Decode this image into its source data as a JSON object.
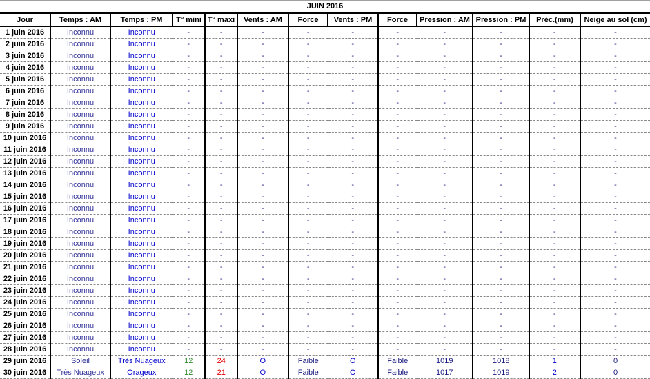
{
  "title": "JUIN  2016",
  "columns": [
    "Jour",
    "Temps : AM",
    "Temps : PM",
    "T° mini",
    "T° maxi",
    "Vents : AM",
    "Force",
    "Vents : PM",
    "Force",
    "Pression : AM",
    "Pression : PM",
    "Préc.(mm)",
    "Neige au sol (cm)"
  ],
  "colors": {
    "temps_am": "#333399",
    "temps_pm": "#0000cc",
    "t_mini": "#2e8b2e",
    "t_maxi": "#e00000",
    "dash": "#1a1a80"
  },
  "rows": [
    [
      "1 juin 2016",
      "Inconnu",
      "Inconnu",
      "-",
      "-",
      "-",
      "-",
      "-",
      "-",
      "-",
      "-",
      "-",
      "-"
    ],
    [
      "2 juin 2016",
      "Inconnu",
      "Inconnu",
      "-",
      "-",
      "-",
      "-",
      "-",
      "-",
      "-",
      "-",
      "-",
      "-"
    ],
    [
      "3 juin 2016",
      "Inconnu",
      "Inconnu",
      "-",
      "-",
      "-",
      "-",
      "-",
      "-",
      "-",
      "-",
      "-",
      "-"
    ],
    [
      "4 juin 2016",
      "Inconnu",
      "Inconnu",
      "-",
      "-",
      "-",
      "-",
      "-",
      "-",
      "-",
      "-",
      "-",
      "-"
    ],
    [
      "5 juin 2016",
      "Inconnu",
      "Inconnu",
      "-",
      "-",
      "-",
      "-",
      "-",
      "-",
      "-",
      "-",
      "-",
      "-"
    ],
    [
      "6 juin 2016",
      "Inconnu",
      "Inconnu",
      "-",
      "-",
      "-",
      "-",
      "-",
      "-",
      "-",
      "-",
      "-",
      "-"
    ],
    [
      "7 juin 2016",
      "Inconnu",
      "Inconnu",
      "-",
      "-",
      "-",
      "-",
      "-",
      "-",
      "-",
      "-",
      "-",
      "-"
    ],
    [
      "8 juin 2016",
      "Inconnu",
      "Inconnu",
      "-",
      "-",
      "-",
      "-",
      "-",
      "-",
      "-",
      "-",
      "-",
      "-"
    ],
    [
      "9 juin 2016",
      "Inconnu",
      "Inconnu",
      "-",
      "-",
      "-",
      "-",
      "-",
      "-",
      "-",
      "-",
      "-",
      "-"
    ],
    [
      "10 juin 2016",
      "Inconnu",
      "Inconnu",
      "-",
      "-",
      "-",
      "-",
      "-",
      "-",
      "-",
      "-",
      "-",
      "-"
    ],
    [
      "11 juin 2016",
      "Inconnu",
      "Inconnu",
      "-",
      "-",
      "-",
      "-",
      "-",
      "-",
      "-",
      "-",
      "-",
      "-"
    ],
    [
      "12 juin 2016",
      "Inconnu",
      "Inconnu",
      "-",
      "-",
      "-",
      "-",
      "-",
      "-",
      "-",
      "-",
      "-",
      "-"
    ],
    [
      "13 juin 2016",
      "Inconnu",
      "Inconnu",
      "-",
      "-",
      "-",
      "-",
      "-",
      "-",
      "-",
      "-",
      "-",
      "-"
    ],
    [
      "14 juin 2016",
      "Inconnu",
      "Inconnu",
      "-",
      "-",
      "-",
      "-",
      "-",
      "-",
      "-",
      "-",
      "-",
      "-"
    ],
    [
      "15 juin 2016",
      "Inconnu",
      "Inconnu",
      "-",
      "-",
      "-",
      "-",
      "-",
      "-",
      "-",
      "-",
      "-",
      "-"
    ],
    [
      "16 juin 2016",
      "Inconnu",
      "Inconnu",
      "-",
      "-",
      "-",
      "-",
      "-",
      "-",
      "-",
      "-",
      "-",
      "-"
    ],
    [
      "17 juin 2016",
      "Inconnu",
      "Inconnu",
      "-",
      "-",
      "-",
      "-",
      "-",
      "-",
      "-",
      "-",
      "-",
      "-"
    ],
    [
      "18 juin 2016",
      "Inconnu",
      "Inconnu",
      "-",
      "-",
      "-",
      "-",
      "-",
      "-",
      "-",
      "-",
      "-",
      "-"
    ],
    [
      "19 juin 2016",
      "Inconnu",
      "Inconnu",
      "-",
      "-",
      "-",
      "-",
      "-",
      "-",
      "-",
      "-",
      "-",
      "-"
    ],
    [
      "20 juin 2016",
      "Inconnu",
      "Inconnu",
      "-",
      "-",
      "-",
      "-",
      "-",
      "-",
      "-",
      "-",
      "-",
      "-"
    ],
    [
      "21 juin 2016",
      "Inconnu",
      "Inconnu",
      "-",
      "-",
      "-",
      "-",
      "-",
      "-",
      "-",
      "-",
      "-",
      "-"
    ],
    [
      "22 juin 2016",
      "Inconnu",
      "Inconnu",
      "-",
      "-",
      "-",
      "-",
      "-",
      "-",
      "-",
      "-",
      "-",
      "-"
    ],
    [
      "23 juin 2016",
      "Inconnu",
      "Inconnu",
      "-",
      "-",
      "-",
      "-",
      "-",
      "-",
      "-",
      "-",
      "-",
      "-"
    ],
    [
      "24 juin 2016",
      "Inconnu",
      "Inconnu",
      "-",
      "-",
      "-",
      "-",
      "-",
      "-",
      "-",
      "-",
      "-",
      "-"
    ],
    [
      "25 juin 2016",
      "Inconnu",
      "Inconnu",
      "-",
      "-",
      "-",
      "-",
      "-",
      "-",
      "-",
      "-",
      "-",
      "-"
    ],
    [
      "26 juin 2016",
      "Inconnu",
      "Inconnu",
      "-",
      "-",
      "-",
      "-",
      "-",
      "-",
      "-",
      "-",
      "-",
      "-"
    ],
    [
      "27 juin 2016",
      "Inconnu",
      "Inconnu",
      "-",
      "-",
      "-",
      "-",
      "-",
      "-",
      "-",
      "-",
      "-",
      "-"
    ],
    [
      "28 juin 2016",
      "Inconnu",
      "Inconnu",
      "-",
      "-",
      "-",
      "-",
      "-",
      "-",
      "-",
      "-",
      "-",
      "-"
    ],
    [
      "29 juin 2016",
      "Soleil",
      "Très Nuageux",
      "12",
      "24",
      "O",
      "Faible",
      "O",
      "Faible",
      "1019",
      "1018",
      "1",
      "0"
    ],
    [
      "30 juin 2016",
      "Très Nuageux",
      "Orageux",
      "12",
      "21",
      "O",
      "Faible",
      "O",
      "Faible",
      "1017",
      "1019",
      "2",
      "0"
    ]
  ]
}
